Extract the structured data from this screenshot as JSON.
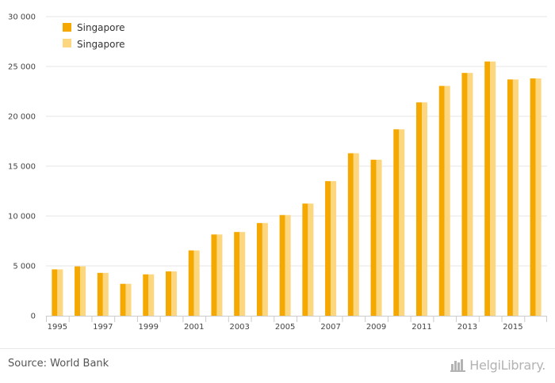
{
  "chart_data": {
    "type": "bar",
    "categories": [
      "1995",
      "1996",
      "1997",
      "1998",
      "1999",
      "2000",
      "2001",
      "2002",
      "2003",
      "2004",
      "2005",
      "2006",
      "2007",
      "2008",
      "2009",
      "2010",
      "2011",
      "2012",
      "2013",
      "2014",
      "2015",
      "2016"
    ],
    "x_tick_labels": [
      "1995",
      "1997",
      "1999",
      "2001",
      "2003",
      "2005",
      "2007",
      "2009",
      "2011",
      "2013",
      "2015"
    ],
    "series": [
      {
        "name": "Singapore",
        "color": "#f5a800",
        "values": [
          4650,
          4950,
          4300,
          3200,
          4150,
          4450,
          6550,
          8150,
          8400,
          9300,
          10100,
          11250,
          13500,
          16300,
          15650,
          18700,
          21400,
          23050,
          24350,
          25500,
          23700,
          23800
        ]
      },
      {
        "name": "Singapore",
        "color": "#fcd77f",
        "values": [
          4650,
          4950,
          4300,
          3200,
          4150,
          4450,
          6550,
          8150,
          8400,
          9300,
          10100,
          11250,
          13500,
          16300,
          15650,
          18700,
          21400,
          23050,
          24350,
          25500,
          23700,
          23800
        ]
      }
    ],
    "y_ticks": [
      "0",
      "5 000",
      "10 000",
      "15 000",
      "20 000",
      "25 000",
      "30 000"
    ],
    "ylim": [
      0,
      30000
    ],
    "grid": true,
    "legend": "top-left"
  },
  "footer": {
    "source": "Source: World Bank",
    "brand": "HelgiLibrary."
  }
}
